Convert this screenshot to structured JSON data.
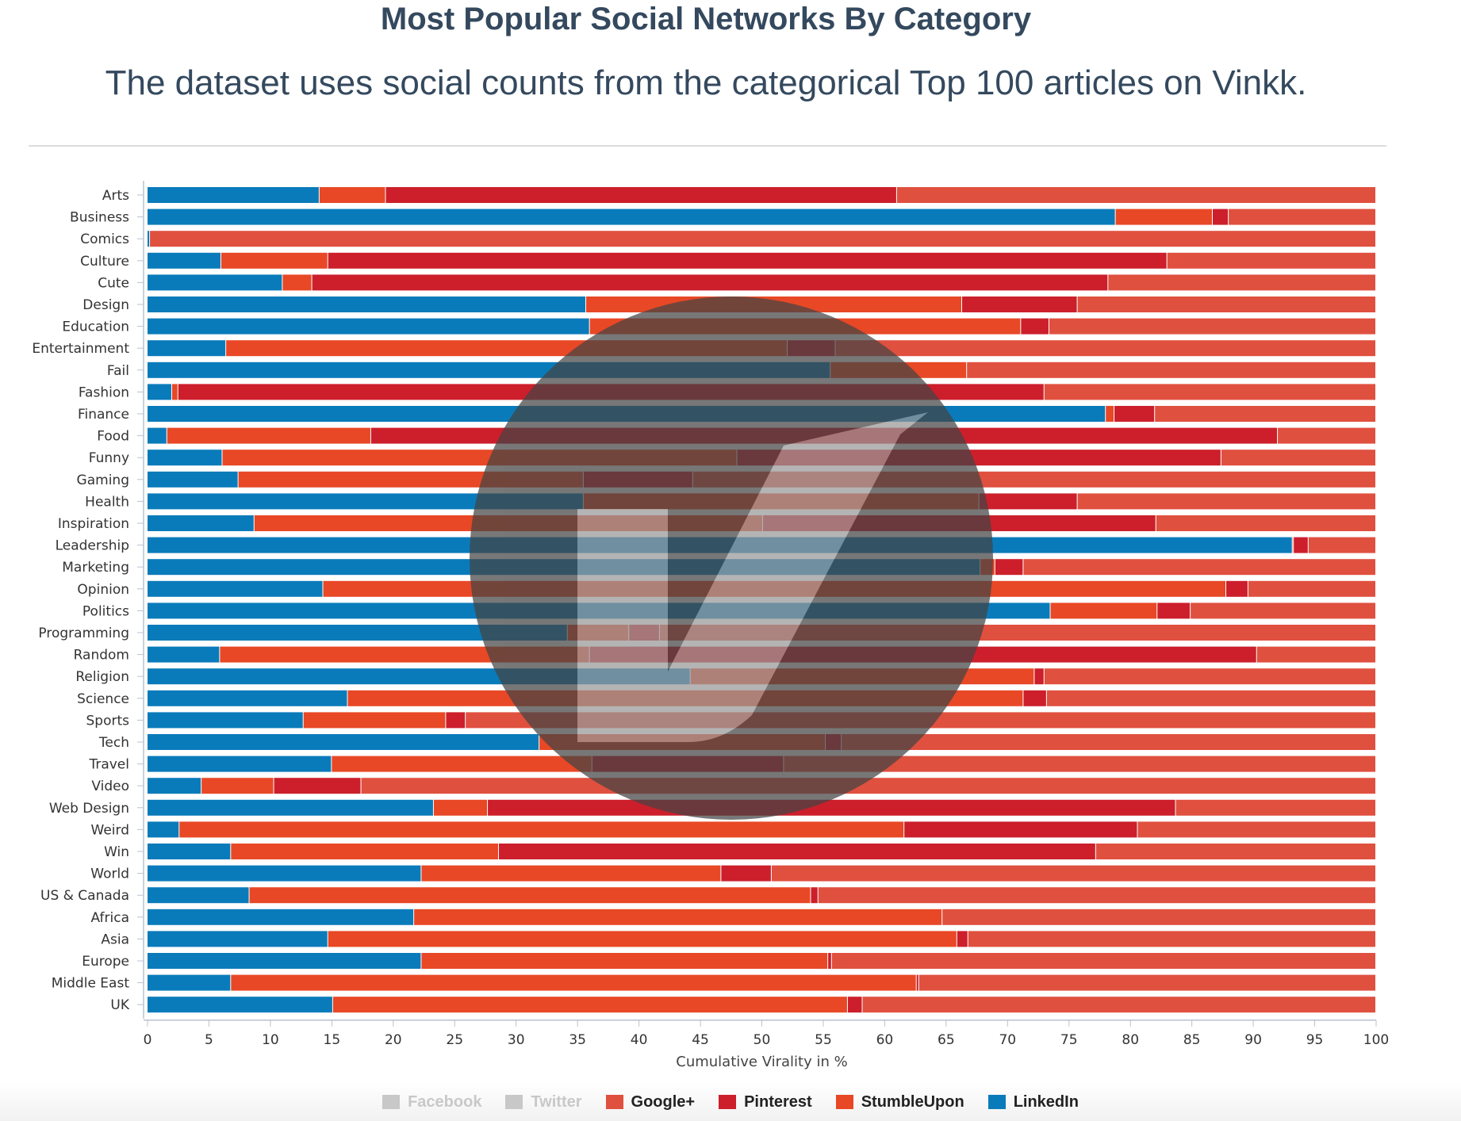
{
  "header": {
    "title": "Most Popular Social Networks By Category",
    "subtitle": "The dataset uses social counts from the categorical Top 100 articles on Vinkk."
  },
  "chart_data": {
    "type": "bar",
    "orientation": "horizontal",
    "stacked": true,
    "xlabel": "Cumulative Virality in %",
    "ylabel": "",
    "xlim": [
      0,
      100
    ],
    "xticks": [
      0,
      5,
      10,
      15,
      20,
      25,
      30,
      35,
      40,
      45,
      50,
      55,
      60,
      65,
      70,
      75,
      80,
      85,
      90,
      95,
      100
    ],
    "grid": false,
    "legend_position": "bottom",
    "categories": [
      "Arts",
      "Business",
      "Comics",
      "Culture",
      "Cute",
      "Design",
      "Education",
      "Entertainment",
      "Fail",
      "Fashion",
      "Finance",
      "Food",
      "Funny",
      "Gaming",
      "Health",
      "Inspiration",
      "Leadership",
      "Marketing",
      "Opinion",
      "Politics",
      "Programming",
      "Random",
      "Religion",
      "Science",
      "Sports",
      "Tech",
      "Travel",
      "Video",
      "Web Design",
      "Weird",
      "Win",
      "World",
      "US & Canada",
      "Africa",
      "Asia",
      "Europe",
      "Middle East",
      "UK"
    ],
    "series": [
      {
        "name": "LinkedIn",
        "color": "#0a7bba",
        "values": [
          14.0,
          78.8,
          0.2,
          6.0,
          11.0,
          35.7,
          36.0,
          6.4,
          55.6,
          2.0,
          78.0,
          1.6,
          6.1,
          7.4,
          35.5,
          8.7,
          93.2,
          67.8,
          14.3,
          73.5,
          34.2,
          5.9,
          44.2,
          16.3,
          12.7,
          31.9,
          15.0,
          4.4,
          23.3,
          2.6,
          6.8,
          22.3,
          8.3,
          21.7,
          14.7,
          22.3,
          6.8,
          15.1
        ]
      },
      {
        "name": "StumbleUpon",
        "color": "#e84826",
        "values": [
          5.4,
          7.9,
          0.0,
          8.7,
          2.4,
          30.6,
          35.1,
          45.7,
          11.1,
          0.5,
          0.7,
          16.6,
          41.9,
          28.1,
          32.2,
          41.4,
          0.1,
          1.2,
          73.5,
          8.7,
          5.0,
          30.1,
          28.0,
          55.0,
          11.6,
          23.3,
          21.2,
          5.9,
          4.4,
          59.0,
          21.8,
          24.4,
          45.7,
          43.0,
          51.2,
          33.1,
          55.8,
          41.9
        ]
      },
      {
        "name": "Pinterest",
        "color": "#cc1f2b",
        "values": [
          41.6,
          1.3,
          0.0,
          68.3,
          64.8,
          9.4,
          2.3,
          3.9,
          0.0,
          70.5,
          3.3,
          73.8,
          39.4,
          8.9,
          8.0,
          32.0,
          1.2,
          2.3,
          1.8,
          2.7,
          2.5,
          54.3,
          0.8,
          1.9,
          1.6,
          1.3,
          15.6,
          7.1,
          56.0,
          19.0,
          48.6,
          4.1,
          0.6,
          0.0,
          0.9,
          0.3,
          0.2,
          1.2
        ]
      },
      {
        "name": "Google+",
        "color": "#e0503f",
        "values": [
          39.0,
          12.0,
          99.8,
          17.0,
          21.8,
          24.3,
          26.6,
          44.0,
          33.3,
          27.0,
          18.0,
          8.0,
          12.6,
          55.6,
          24.3,
          17.9,
          5.5,
          28.7,
          10.4,
          15.1,
          58.3,
          9.7,
          27.0,
          26.8,
          74.1,
          43.5,
          48.2,
          82.6,
          16.3,
          19.4,
          22.8,
          49.2,
          45.4,
          35.3,
          33.2,
          44.3,
          37.2,
          41.8
        ]
      },
      {
        "name": "Pinterest",
        "color": "#a82431",
        "values": [
          0,
          0,
          0,
          0,
          0,
          0,
          0,
          0,
          0,
          0,
          0,
          0,
          0,
          0,
          0,
          0,
          0,
          0,
          0,
          0,
          0,
          0,
          0,
          0,
          0,
          0,
          0,
          0,
          0,
          0,
          0,
          0,
          0,
          0,
          0,
          0,
          0,
          0
        ]
      },
      {
        "name": "Twitter",
        "color": "#cfcfcf",
        "values": [
          0,
          0,
          0,
          0,
          0,
          0,
          0,
          0,
          0,
          0,
          0,
          0,
          0,
          0,
          0,
          0,
          0,
          0,
          0,
          0,
          0,
          0,
          0,
          0,
          0,
          0,
          0,
          0,
          0,
          0,
          0,
          0,
          0,
          0,
          0,
          0,
          0,
          0
        ]
      },
      {
        "name": "Facebook",
        "color": "#cfcfcf",
        "values": [
          0,
          0,
          0,
          0,
          0,
          0,
          0,
          0,
          0,
          0,
          0,
          0,
          0,
          0,
          0,
          0,
          0,
          0,
          0,
          0,
          0,
          0,
          0,
          0,
          0,
          0,
          0,
          0,
          0,
          0,
          0,
          0,
          0,
          0,
          0,
          0,
          0,
          0
        ]
      }
    ],
    "legend": [
      {
        "label": "Facebook",
        "color": "#c8c8c8",
        "enabled": false
      },
      {
        "label": "Twitter",
        "color": "#c8c8c8",
        "enabled": false
      },
      {
        "label": "Google+",
        "color": "#e0503f",
        "enabled": true
      },
      {
        "label": "Pinterest",
        "color": "#cc1f2b",
        "enabled": true
      },
      {
        "label": "StumbleUpon",
        "color": "#e84826",
        "enabled": true
      },
      {
        "label": "LinkedIn",
        "color": "#0a7bba",
        "enabled": true
      }
    ]
  }
}
